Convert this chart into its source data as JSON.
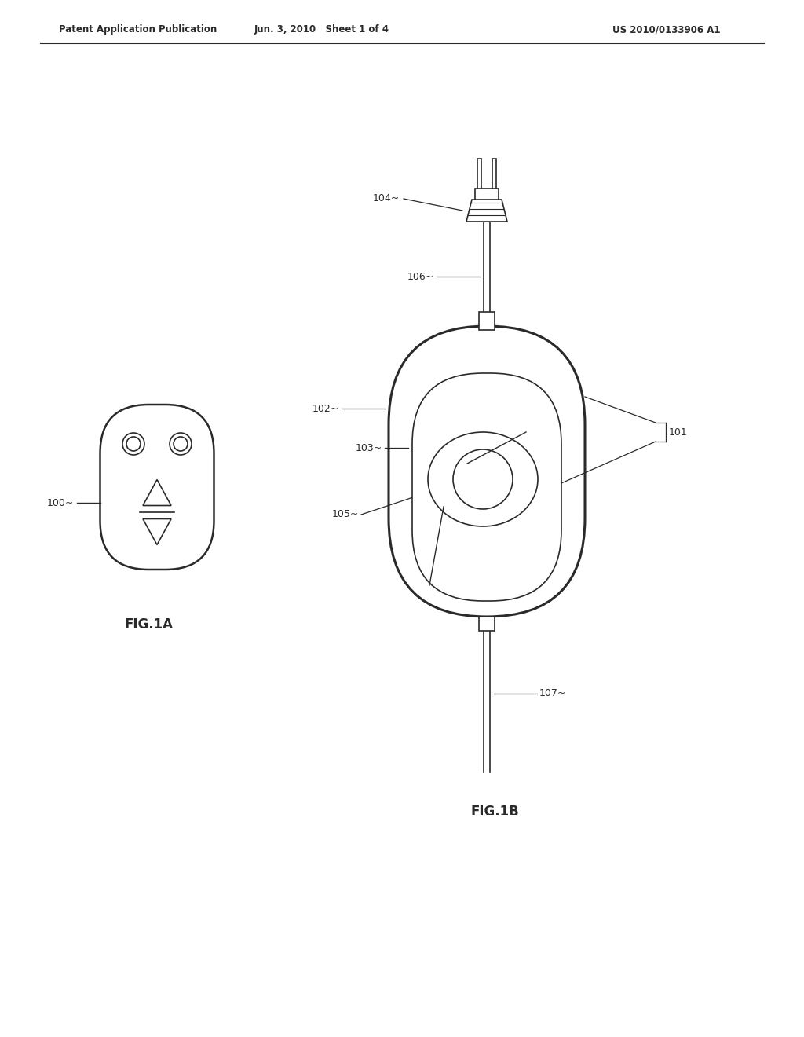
{
  "bg_color": "#ffffff",
  "line_color": "#2a2a2a",
  "header_left": "Patent Application Publication",
  "header_mid": "Jun. 3, 2010   Sheet 1 of 4",
  "header_right": "US 2010/0133906 A1",
  "fig1a_label": "FIG.1A",
  "fig1b_label": "FIG.1B",
  "ref_100": "100",
  "ref_101": "101",
  "ref_102": "102",
  "ref_103": "103",
  "ref_104": "104",
  "ref_105": "105",
  "ref_106": "106",
  "ref_107": "107"
}
